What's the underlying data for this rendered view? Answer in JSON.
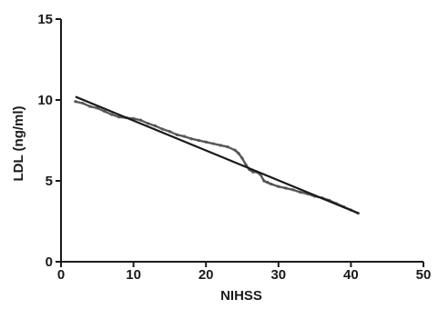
{
  "chart_data": {
    "type": "scatter",
    "title": "",
    "xlabel": "NIHSS",
    "ylabel": "LDL (ng/ml)",
    "xlim": [
      0,
      50
    ],
    "ylim": [
      0,
      15
    ],
    "x_ticks": [
      0,
      10,
      20,
      30,
      40,
      50
    ],
    "y_ticks": [
      0,
      5,
      10,
      15
    ],
    "grid": false,
    "legend": "none",
    "colors": {
      "axis": "#1a1a1a",
      "fit_line": "#1a1a1a",
      "points": "#555555"
    },
    "fit_line": {
      "x": [
        2,
        41
      ],
      "y": [
        10.2,
        3.0
      ]
    },
    "series": [
      {
        "x": [
          2.0,
          3.0,
          4.0,
          5.0,
          6.0,
          7.0,
          8.0,
          9.0,
          10.0,
          11.0,
          12.0,
          13.0,
          14.0,
          15.0,
          16.0,
          17.0,
          18.0,
          19.0,
          20.0,
          21.0,
          22.0,
          23.0,
          24.0,
          24.5,
          25.0,
          25.5,
          26.0,
          26.5,
          27.0,
          27.5,
          28.0,
          28.5,
          29.0,
          30.0,
          31.0,
          32.0,
          33.0,
          34.0,
          35.0,
          36.0,
          37.0,
          38.0,
          39.0,
          40.0,
          41.0
        ],
        "y": [
          9.9,
          9.8,
          9.6,
          9.5,
          9.3,
          9.1,
          8.95,
          8.9,
          8.85,
          8.75,
          8.55,
          8.4,
          8.2,
          8.05,
          7.85,
          7.75,
          7.6,
          7.5,
          7.4,
          7.3,
          7.2,
          7.1,
          6.9,
          6.7,
          6.4,
          6.0,
          5.7,
          5.55,
          5.55,
          5.4,
          5.0,
          4.9,
          4.8,
          4.65,
          4.55,
          4.45,
          4.3,
          4.2,
          4.05,
          3.95,
          3.8,
          3.6,
          3.4,
          3.2,
          3.0
        ]
      }
    ]
  }
}
